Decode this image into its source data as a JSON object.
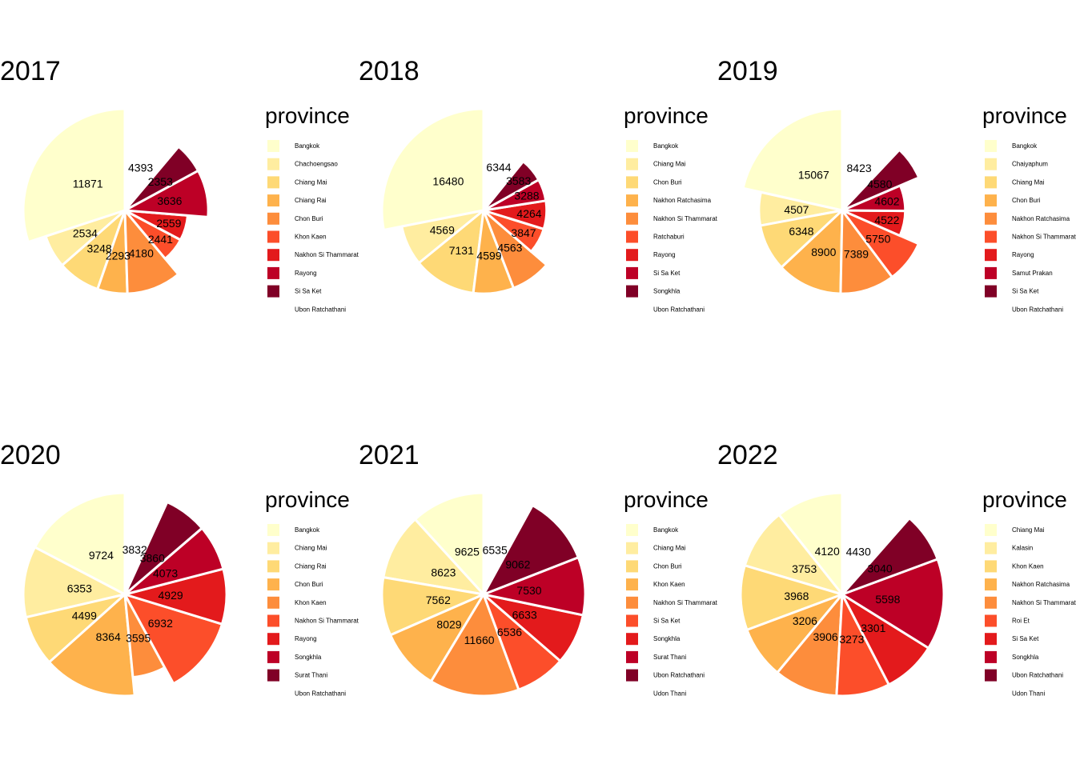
{
  "palette": [
    "#FFFFCC",
    "#FFEDA0",
    "#FED976",
    "#FEB24C",
    "#FD8D3C",
    "#FC4E2A",
    "#E31A1C",
    "#BD0026",
    "#800026",
    "#FFFFFF"
  ],
  "chart_data": [
    {
      "type": "pie",
      "title": "2017",
      "legend_title": "province",
      "legend_position": "right",
      "categories": [
        "Bangkok",
        "Chachoengsao",
        "Chiang Mai",
        "Chiang Rai",
        "Chon Buri",
        "Khon Kaen",
        "Nakhon Si Thammarat",
        "Rayong",
        "Si Sa Ket",
        "Ubon Ratchathani"
      ],
      "values": [
        11871,
        2534,
        3248,
        2293,
        4180,
        2441,
        2559,
        3636,
        2353,
        4393
      ],
      "exploded_radius": [
        1.0,
        0.82,
        0.82,
        0.82,
        0.82,
        0.62,
        0.62,
        0.82,
        0.82,
        0.82
      ]
    },
    {
      "type": "pie",
      "title": "2018",
      "legend_title": "province",
      "legend_position": "right",
      "categories": [
        "Bangkok",
        "Chiang Mai",
        "Chon Buri",
        "Nakhon Ratchasima",
        "Nakhon Si Thammarat",
        "Ratchaburi",
        "Rayong",
        "Si Sa Ket",
        "Songkhla",
        "Ubon Ratchathani"
      ],
      "values": [
        16480,
        4569,
        7131,
        4599,
        4563,
        3847,
        4264,
        3288,
        3583,
        6344
      ],
      "exploded_radius": [
        1.0,
        0.82,
        0.82,
        0.82,
        0.82,
        0.62,
        0.62,
        0.62,
        0.62,
        0.82
      ]
    },
    {
      "type": "pie",
      "title": "2019",
      "legend_title": "province",
      "legend_position": "right",
      "categories": [
        "Bangkok",
        "Chaiyaphum",
        "Chiang Mai",
        "Chon Buri",
        "Nakhon Ratchasima",
        "Nakhon Si Thammarat",
        "Rayong",
        "Samut Prakan",
        "Si Sa Ket",
        "Ubon Ratchathani"
      ],
      "values": [
        15067,
        4507,
        6348,
        8900,
        7389,
        5750,
        4522,
        4602,
        4580,
        8423
      ],
      "exploded_radius": [
        1.0,
        0.82,
        0.82,
        0.82,
        0.82,
        0.82,
        0.62,
        0.62,
        0.82,
        0.82
      ]
    },
    {
      "type": "pie",
      "title": "2020",
      "legend_title": "province",
      "legend_position": "right",
      "categories": [
        "Bangkok",
        "Chiang Mai",
        "Chiang Rai",
        "Chon Buri",
        "Khon Kaen",
        "Nakhon Si Thammarat",
        "Rayong",
        "Songkhla",
        "Surat Thani",
        "Ubon Ratchathani"
      ],
      "values": [
        9724,
        6353,
        4499,
        8364,
        3595,
        6932,
        4929,
        4073,
        3860,
        3832
      ],
      "exploded_radius": [
        1.0,
        1.0,
        1.0,
        1.0,
        0.82,
        1.0,
        1.0,
        1.0,
        1.0,
        1.0
      ]
    },
    {
      "type": "pie",
      "title": "2021",
      "legend_title": "province",
      "legend_position": "right",
      "categories": [
        "Bangkok",
        "Chiang Mai",
        "Chon Buri",
        "Khon Kaen",
        "Nakhon Si Thammarat",
        "Si Sa Ket",
        "Songkhla",
        "Surat Thani",
        "Ubon Ratchathani",
        "Udon Thani"
      ],
      "values": [
        9625,
        8623,
        7562,
        8029,
        11660,
        6536,
        6633,
        7530,
        9062,
        6535
      ],
      "exploded_radius": [
        1.0,
        1.0,
        1.0,
        1.0,
        1.0,
        1.0,
        1.0,
        1.0,
        1.0,
        1.0
      ]
    },
    {
      "type": "pie",
      "title": "2022",
      "legend_title": "province",
      "legend_position": "right",
      "categories": [
        "Chiang Mai",
        "Kalasin",
        "Khon Kaen",
        "Nakhon Ratchasima",
        "Nakhon Si Thammarat",
        "Roi Et",
        "Si Sa Ket",
        "Songkhla",
        "Ubon Ratchathani",
        "Udon Thani"
      ],
      "values": [
        4120,
        3753,
        3968,
        3206,
        3906,
        3273,
        3301,
        5598,
        3040,
        4430
      ],
      "exploded_radius": [
        1.0,
        1.0,
        1.0,
        1.0,
        1.0,
        1.0,
        1.0,
        1.0,
        1.0,
        1.0
      ]
    }
  ]
}
